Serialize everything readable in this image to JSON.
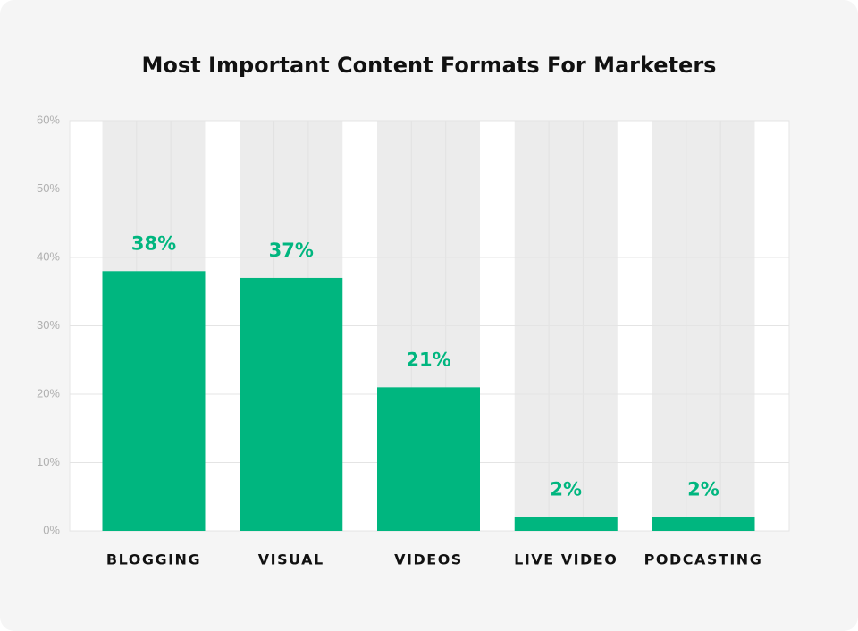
{
  "chart_data": {
    "type": "bar",
    "title": "Most Important Content Formats For Marketers",
    "categories": [
      "BLOGGING",
      "VISUAL",
      "VIDEOS",
      "LIVE VIDEO",
      "PODCASTING"
    ],
    "values": [
      38,
      37,
      21,
      2,
      2
    ],
    "value_labels": [
      "38%",
      "37%",
      "21%",
      "2%",
      "2%"
    ],
    "color": "#00b67f",
    "ylim": [
      0,
      60
    ],
    "yticks": [
      {
        "value": 0,
        "label": "0%"
      },
      {
        "value": 10,
        "label": "10%"
      },
      {
        "value": 20,
        "label": "20%"
      },
      {
        "value": 30,
        "label": "30%"
      },
      {
        "value": 40,
        "label": "40%"
      },
      {
        "value": 50,
        "label": "50%"
      },
      {
        "value": 60,
        "label": "60%"
      }
    ],
    "grid": true
  }
}
